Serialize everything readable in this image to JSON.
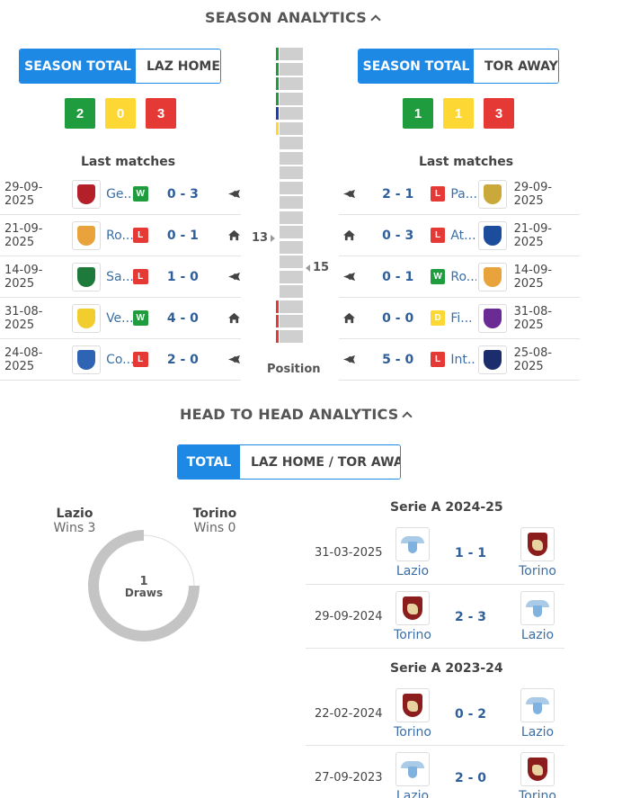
{
  "season_analytics": {
    "title": "SEASON ANALYTICS",
    "left": {
      "tabs": [
        "SEASON TOTAL",
        "LAZ HOME"
      ],
      "stats": {
        "wins": "2",
        "draws": "0",
        "losses": "3"
      },
      "last_matches_title": "Last matches",
      "matches": [
        {
          "date": "29-09-2025",
          "team": "Ge...",
          "result": "W",
          "score": "0 - 3",
          "venue": "away"
        },
        {
          "date": "21-09-2025",
          "team": "Ro...",
          "result": "L",
          "score": "0 - 1",
          "venue": "home"
        },
        {
          "date": "14-09-2025",
          "team": "Sa...",
          "result": "L",
          "score": "1 - 0",
          "venue": "away"
        },
        {
          "date": "31-08-2025",
          "team": "Ve...",
          "result": "W",
          "score": "4 - 0",
          "venue": "home"
        },
        {
          "date": "24-08-2025",
          "team": "Co...",
          "result": "L",
          "score": "2 - 0",
          "venue": "away"
        }
      ]
    },
    "right": {
      "tabs": [
        "SEASON TOTAL",
        "TOR AWAY"
      ],
      "stats": {
        "wins": "1",
        "draws": "1",
        "losses": "3"
      },
      "last_matches_title": "Last matches",
      "matches": [
        {
          "date": "29-09-2025",
          "team": "Pa...",
          "result": "L",
          "score": "2 - 1",
          "venue": "away"
        },
        {
          "date": "21-09-2025",
          "team": "At...",
          "result": "L",
          "score": "0 - 3",
          "venue": "home"
        },
        {
          "date": "14-09-2025",
          "team": "Ro...",
          "result": "W",
          "score": "0 - 1",
          "venue": "away"
        },
        {
          "date": "31-08-2025",
          "team": "Fi...",
          "result": "D",
          "score": "0 - 0",
          "venue": "home"
        },
        {
          "date": "25-08-2025",
          "team": "Int...",
          "result": "L",
          "score": "5 - 0",
          "venue": "away"
        }
      ]
    },
    "position": {
      "label": "Position",
      "left_value": "13",
      "right_value": "15",
      "total_positions": 20,
      "zone_colors": {
        "cl": "#1f9d3e",
        "el": "#1e3fb5",
        "conf": "#fdd835",
        "releg": "#e53935"
      }
    }
  },
  "head_to_head": {
    "title": "HEAD TO HEAD ANALYTICS",
    "tabs": [
      "TOTAL",
      "LAZ HOME / TOR AWAY"
    ],
    "summary": {
      "home_name": "Lazio",
      "home_wins": "Wins 3",
      "away_name": "Torino",
      "away_wins": "Wins 0",
      "draws_count": "1",
      "draws_label": "Draws"
    },
    "seasons": [
      {
        "name": "Serie A 2024-25",
        "matches": [
          {
            "date": "31-03-2025",
            "home": "Lazio",
            "score": "1 - 1",
            "away": "Torino"
          },
          {
            "date": "29-09-2024",
            "home": "Torino",
            "score": "2 - 3",
            "away": "Lazio"
          }
        ]
      },
      {
        "name": "Serie A 2023-24",
        "matches": [
          {
            "date": "22-02-2024",
            "home": "Torino",
            "score": "0 - 2",
            "away": "Lazio"
          },
          {
            "date": "27-09-2023",
            "home": "Lazio",
            "score": "2 - 0",
            "away": "Torino"
          }
        ]
      }
    ]
  },
  "colors": {
    "accent": "#1e88e5",
    "win": "#1f9d3e",
    "draw": "#fdd835",
    "loss": "#e53935"
  }
}
